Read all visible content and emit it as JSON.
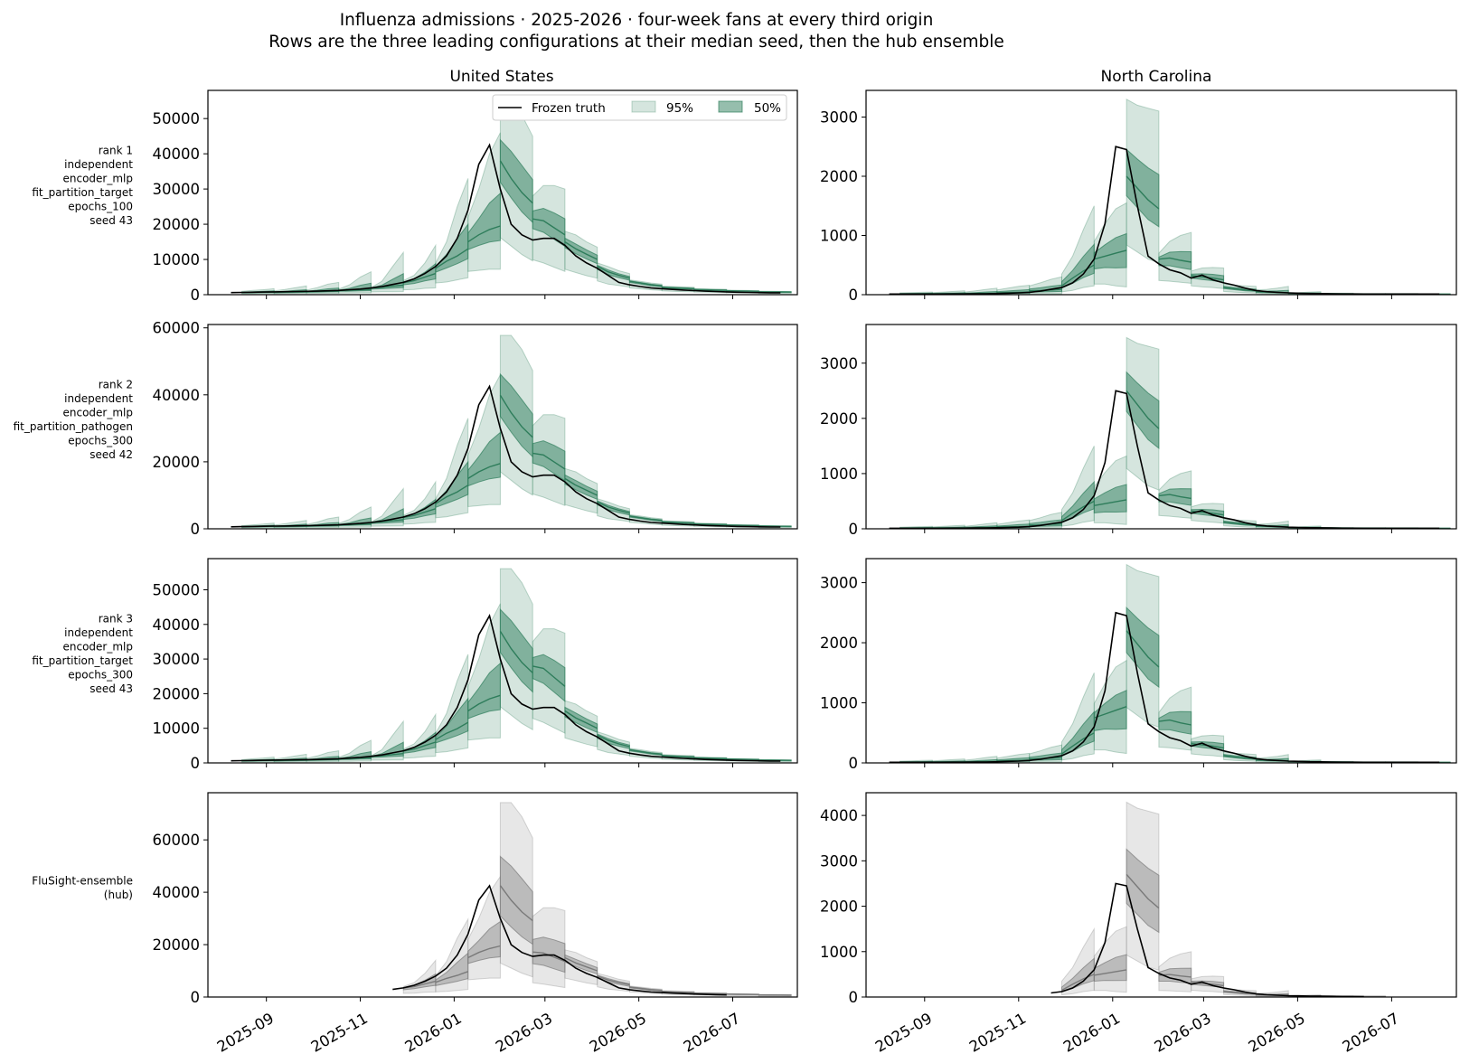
{
  "figure": {
    "title_line1": "Influenza admissions · 2025-2026 · four-week fans at every third origin",
    "title_line2": "Rows are the three leading configurations at their median seed, then the hub ensemble"
  },
  "columns": [
    "United States",
    "North Carolina"
  ],
  "rows": [
    {
      "label_lines": [
        "rank 1",
        "independent",
        "encoder_mlp",
        "fit_partition_target",
        "epochs_100",
        "seed 43"
      ],
      "color": "#2e7d5b"
    },
    {
      "label_lines": [
        "rank 2",
        "independent",
        "encoder_mlp",
        "fit_partition_pathogen",
        "epochs_300",
        "seed 42"
      ],
      "color": "#2e7d5b"
    },
    {
      "label_lines": [
        "rank 3",
        "independent",
        "encoder_mlp",
        "fit_partition_target",
        "epochs_300",
        "seed 43"
      ],
      "color": "#2e7d5b"
    },
    {
      "label_lines": [
        "FluSight-ensemble",
        "(hub)"
      ],
      "color": "#7a7a7a"
    }
  ],
  "legend": {
    "truth": "Frozen truth",
    "pi95": "95%",
    "pi50": "50%",
    "placement": "upper-right of first panel"
  },
  "x_ticks": [
    "2025-09",
    "2025-11",
    "2026-01",
    "2026-03",
    "2026-05",
    "2026-07"
  ],
  "chart_data": {
    "type": "line",
    "x_axis": {
      "type": "date",
      "range": [
        "2025-07-25",
        "2026-08-12"
      ],
      "weeks_start": "2025-08-09",
      "step_days": 7
    },
    "truth": {
      "us": [
        600,
        650,
        700,
        750,
        800,
        850,
        900,
        950,
        1000,
        1100,
        1200,
        1400,
        1600,
        1900,
        2300,
        2900,
        3500,
        4500,
        6000,
        8000,
        11000,
        16000,
        24000,
        37000,
        42500,
        30000,
        20000,
        17000,
        15500,
        16000,
        16000,
        14000,
        11000,
        9000,
        7500,
        5500,
        3500,
        2800,
        2300,
        1900,
        1700,
        1500,
        1300,
        1150,
        1000,
        900,
        800,
        700,
        650,
        600,
        550,
        550
      ],
      "nc": [
        10,
        10,
        10,
        10,
        10,
        10,
        12,
        12,
        15,
        15,
        20,
        25,
        30,
        40,
        60,
        90,
        120,
        200,
        350,
        600,
        1200,
        2500,
        2450,
        1500,
        650,
        520,
        420,
        370,
        280,
        330,
        250,
        200,
        160,
        110,
        70,
        50,
        40,
        30,
        25,
        20,
        18,
        15,
        12,
        12,
        10,
        10,
        10,
        10,
        10,
        10,
        10,
        10
      ]
    },
    "truth_start_hub": "2025-11-22",
    "truth_end_hub": {
      "us": "2026-06-27",
      "nc": "2026-01-10"
    },
    "ylim": {
      "us": [
        [
          0,
          58000
        ],
        [
          0,
          61000
        ],
        [
          0,
          59000
        ],
        [
          0,
          78000
        ]
      ],
      "nc": [
        [
          0,
          3450
        ],
        [
          0,
          3700
        ],
        [
          0,
          3400
        ],
        [
          0,
          4500
        ]
      ]
    },
    "yticks": {
      "us": [
        [
          0,
          10000,
          20000,
          30000,
          40000,
          50000
        ],
        [
          0,
          20000,
          40000,
          60000
        ],
        [
          0,
          10000,
          20000,
          30000,
          40000,
          50000
        ],
        [
          0,
          20000,
          40000,
          60000
        ]
      ],
      "nc": [
        [
          0,
          1000,
          2000,
          3000
        ],
        [
          0,
          1000,
          2000,
          3000
        ],
        [
          0,
          1000,
          2000,
          3000
        ],
        [
          0,
          1000,
          2000,
          3000,
          4000
        ]
      ]
    },
    "fans": {
      "us": [
        [
          [
            1,
            950,
            600,
            450
          ],
          [
            1,
            1200,
            650,
            480
          ],
          [
            1,
            1400,
            700,
            500
          ],
          [
            1,
            1700,
            750,
            520
          ]
        ],
        [
          [
            4,
            1100,
            650,
            480
          ],
          [
            4,
            1500,
            700,
            500
          ],
          [
            4,
            2000,
            760,
            520
          ],
          [
            4,
            2500,
            820,
            540
          ]
        ],
        [
          [
            7,
            1300,
            800,
            560
          ],
          [
            7,
            2000,
            880,
            600
          ],
          [
            7,
            3000,
            950,
            630
          ],
          [
            7,
            3500,
            1000,
            650
          ]
        ],
        [
          [
            10,
            1600,
            1150,
            780
          ],
          [
            10,
            2800,
            1250,
            800
          ],
          [
            10,
            5000,
            1400,
            850
          ],
          [
            10,
            6500,
            1500,
            870
          ]
        ],
        [
          [
            13,
            2000,
            1900,
            1300
          ],
          [
            13,
            3800,
            2100,
            1350
          ],
          [
            13,
            8000,
            2400,
            1400
          ],
          [
            13,
            12000,
            2700,
            1450
          ]
        ],
        [
          [
            16,
            4000,
            3400,
            2300
          ],
          [
            16,
            5500,
            4000,
            2500
          ],
          [
            16,
            9000,
            5000,
            3000
          ],
          [
            16,
            14000,
            6000,
            3200
          ]
        ],
        [
          [
            19,
            9000,
            7500,
            5500
          ],
          [
            19,
            15000,
            9500,
            6000
          ],
          [
            19,
            25000,
            11000,
            7000
          ],
          [
            19,
            33000,
            13000,
            8000
          ]
        ],
        [
          [
            22,
            22000,
            15000,
            11000
          ],
          [
            22,
            30000,
            17000,
            11500
          ],
          [
            22,
            40000,
            18500,
            12000
          ],
          [
            22,
            46000,
            19500,
            12000
          ]
        ],
        [
          [
            25,
            55000,
            38000,
            27000
          ],
          [
            25,
            55000,
            33000,
            23000
          ],
          [
            25,
            51000,
            29000,
            19000
          ],
          [
            25,
            45000,
            26000,
            16000
          ]
        ],
        [
          [
            28,
            28000,
            21500,
            16500
          ],
          [
            28,
            31000,
            21000,
            15000
          ],
          [
            28,
            31000,
            19000,
            13000
          ],
          [
            28,
            30000,
            17000,
            11000
          ]
        ],
        [
          [
            31,
            18000,
            15000,
            12000
          ],
          [
            31,
            17000,
            13000,
            10500
          ],
          [
            31,
            15000,
            11500,
            9000
          ],
          [
            31,
            13500,
            10000,
            7800
          ]
        ],
        [
          [
            34,
            9000,
            8000,
            6500
          ],
          [
            34,
            8000,
            6500,
            5000
          ],
          [
            34,
            6800,
            5500,
            4300
          ],
          [
            34,
            6000,
            4700,
            3600
          ]
        ],
        [
          [
            37,
            4200,
            3800,
            3200
          ],
          [
            37,
            3800,
            3300,
            2800
          ],
          [
            37,
            3300,
            2800,
            2300
          ],
          [
            37,
            3000,
            2500,
            2000
          ]
        ],
        [
          [
            40,
            2400,
            2100,
            1800
          ],
          [
            40,
            2300,
            1950,
            1600
          ],
          [
            40,
            2200,
            1800,
            1450
          ],
          [
            40,
            2100,
            1700,
            1350
          ]
        ],
        [
          [
            43,
            1700,
            1500,
            1250
          ],
          [
            43,
            1650,
            1400,
            1150
          ],
          [
            43,
            1600,
            1300,
            1050
          ],
          [
            43,
            1550,
            1250,
            950
          ]
        ],
        [
          [
            46,
            1300,
            1100,
            900
          ],
          [
            46,
            1250,
            1050,
            850
          ],
          [
            46,
            1200,
            1000,
            800
          ],
          [
            46,
            1150,
            950,
            750
          ]
        ],
        [
          [
            49,
            1000,
            800,
            600
          ],
          [
            49,
            950,
            780,
            580
          ],
          [
            49,
            920,
            760,
            560
          ],
          [
            49,
            900,
            740,
            540
          ]
        ]
      ],
      "nc": [
        [
          [
            1,
            30,
            12,
            5
          ],
          [
            1,
            35,
            13,
            5
          ],
          [
            1,
            40,
            14,
            5
          ],
          [
            1,
            45,
            15,
            5
          ]
        ],
        [
          [
            4,
            35,
            14,
            5
          ],
          [
            4,
            45,
            15,
            5
          ],
          [
            4,
            55,
            16,
            5
          ],
          [
            4,
            65,
            17,
            5
          ]
        ],
        [
          [
            7,
            45,
            18,
            6
          ],
          [
            7,
            65,
            20,
            6
          ],
          [
            7,
            90,
            22,
            6
          ],
          [
            7,
            110,
            24,
            6
          ]
        ],
        [
          [
            10,
            80,
            32,
            10
          ],
          [
            10,
            110,
            36,
            10
          ],
          [
            10,
            140,
            40,
            10
          ],
          [
            10,
            160,
            45,
            12
          ]
        ],
        [
          [
            13,
            150,
            65,
            25
          ],
          [
            13,
            200,
            70,
            25
          ],
          [
            13,
            260,
            80,
            25
          ],
          [
            13,
            300,
            90,
            25
          ]
        ],
        [
          [
            16,
            350,
            150,
            80
          ],
          [
            16,
            650,
            280,
            120
          ],
          [
            16,
            1100,
            400,
            200
          ],
          [
            16,
            1500,
            500,
            250
          ]
        ],
        [
          [
            19,
            900,
            600,
            300
          ],
          [
            19,
            1200,
            650,
            300
          ],
          [
            19,
            1450,
            700,
            250
          ],
          [
            19,
            1550,
            750,
            220
          ]
        ],
        [
          [
            22,
            3300,
            2000,
            1400
          ],
          [
            22,
            3200,
            1800,
            1200
          ],
          [
            22,
            3150,
            1600,
            1000
          ],
          [
            22,
            3100,
            1450,
            900
          ]
        ],
        [
          [
            25,
            700,
            600,
            400
          ],
          [
            25,
            900,
            620,
            380
          ],
          [
            25,
            1000,
            580,
            350
          ],
          [
            25,
            1050,
            550,
            320
          ]
        ],
        [
          [
            28,
            400,
            320,
            250
          ],
          [
            28,
            450,
            300,
            220
          ],
          [
            28,
            460,
            280,
            200
          ],
          [
            28,
            450,
            250,
            170
          ]
        ],
        [
          [
            31,
            180,
            120,
            90
          ],
          [
            31,
            160,
            100,
            70
          ],
          [
            31,
            150,
            80,
            55
          ],
          [
            31,
            140,
            70,
            45
          ]
        ],
        [
          [
            34,
            80,
            50,
            30
          ],
          [
            34,
            90,
            45,
            25
          ],
          [
            34,
            110,
            40,
            20
          ],
          [
            34,
            140,
            35,
            18
          ]
        ],
        [
          [
            37,
            30,
            25,
            15
          ],
          [
            37,
            35,
            22,
            12
          ],
          [
            37,
            45,
            20,
            10
          ],
          [
            37,
            50,
            18,
            8
          ]
        ],
        [
          [
            40,
            25,
            15,
            8
          ],
          [
            40,
            25,
            14,
            7
          ],
          [
            40,
            25,
            13,
            6
          ],
          [
            40,
            25,
            12,
            5
          ]
        ],
        [
          [
            43,
            20,
            12,
            6
          ],
          [
            43,
            20,
            11,
            5
          ],
          [
            43,
            20,
            10,
            5
          ],
          [
            43,
            20,
            10,
            4
          ]
        ],
        [
          [
            46,
            18,
            10,
            5
          ],
          [
            46,
            18,
            10,
            5
          ],
          [
            46,
            18,
            10,
            4
          ],
          [
            46,
            18,
            10,
            4
          ]
        ],
        [
          [
            49,
            15,
            8,
            4
          ],
          [
            49,
            15,
            8,
            4
          ],
          [
            49,
            15,
            8,
            4
          ],
          [
            49,
            15,
            8,
            4
          ]
        ]
      ]
    },
    "fan_scale": {
      "us": [
        [
          1,
          1,
          1,
          1
        ],
        [
          1,
          1,
          1,
          1
        ],
        [
          1,
          1,
          1,
          1
        ],
        [
          1,
          1,
          1,
          1
        ]
      ],
      "nc": [
        [
          1,
          1,
          1,
          1
        ],
        [
          1,
          1,
          1,
          1
        ],
        [
          1,
          1,
          1,
          1
        ],
        [
          1,
          1,
          1,
          1
        ]
      ]
    },
    "fan_shifts": {
      "us": {
        "row2": {
          "25": [
            1.05,
            1.05,
            1.05
          ],
          "28": [
            1.1,
            1.05,
            1.05
          ]
        },
        "row3": {
          "25": [
            1.02,
            1.0,
            1.0
          ],
          "28": [
            1.25,
            1.3,
            1.3
          ],
          "19": [
            0.95,
            0.9,
            0.9
          ]
        },
        "row4": {
          "25": [
            1.35,
            1.12,
            0.8
          ],
          "28": [
            1.1,
            0.8,
            0.55
          ],
          "19": [
            0.9,
            0.75,
            0.6
          ]
        }
      },
      "nc": {
        "row2": {
          "22": [
            1.05,
            1.25,
            1.3
          ],
          "19": [
            0.85,
            0.7,
            0.6
          ]
        },
        "row3": {
          "22": [
            1.0,
            1.1,
            1.1
          ],
          "25": [
            1.2,
            1.15,
            1.1
          ],
          "19": [
            1.1,
            1.25,
            1.2
          ]
        },
        "row4": {
          "22": [
            1.3,
            1.35,
            1.1
          ],
          "25": [
            0.95,
            0.8,
            0.6
          ],
          "19": [
            1.0,
            0.8,
            0.8
          ]
        }
      }
    }
  }
}
